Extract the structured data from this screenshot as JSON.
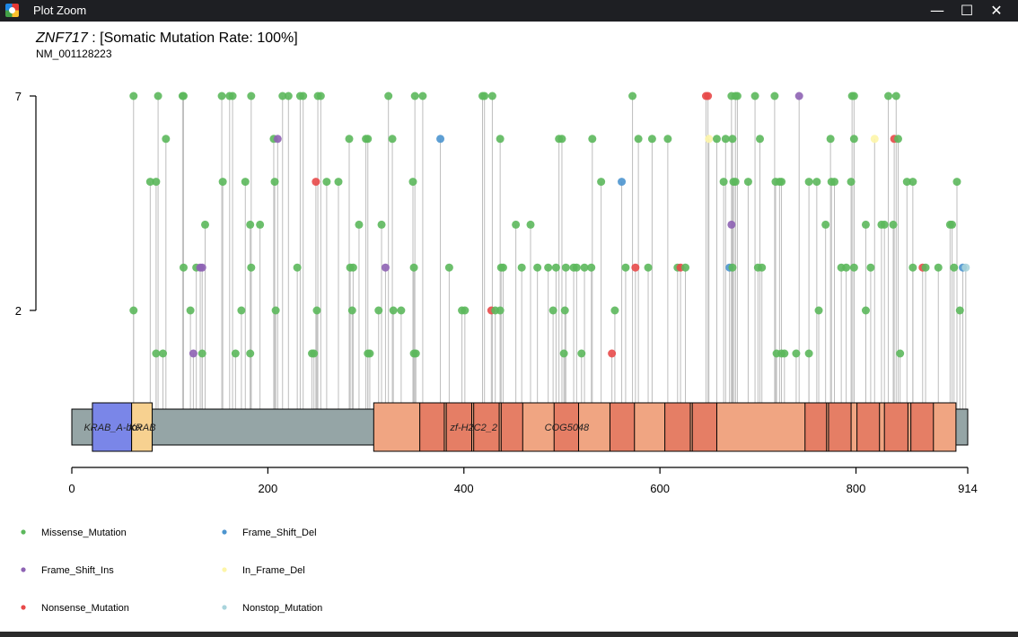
{
  "window": {
    "title": "Plot Zoom",
    "minimize_glyph": "—",
    "maximize_glyph": "☐",
    "close_glyph": "✕"
  },
  "chart_data": {
    "type": "lollipop",
    "title": {
      "gene": "ZNF717",
      "rest": " : [Somatic Mutation Rate: 100%]"
    },
    "subtitle": "NM_001128223",
    "x_ticks": [
      0,
      200,
      400,
      600,
      800,
      914
    ],
    "xlim": [
      0,
      914
    ],
    "y_ticks": [
      7,
      2
    ],
    "protein_length": 914,
    "colors": {
      "Missense_Mutation": "#5cb85c",
      "Frame_Shift_Ins": "#8e63b4",
      "Nonsense_Mutation": "#e84a4a",
      "Frame_Shift_Del": "#4d95cf",
      "In_Frame_Del": "#fdf5a8",
      "Nonstop_Mutation": "#a9d4dc"
    },
    "legend": [
      "Missense_Mutation",
      "Frame_Shift_Del",
      "Frame_Shift_Ins",
      "In_Frame_Del",
      "Nonsense_Mutation",
      "Nonstop_Mutation"
    ],
    "domains": [
      {
        "start": 21,
        "end": 61,
        "color": "#7a86e8",
        "label": "KRAB_A-box"
      },
      {
        "start": 61,
        "end": 82,
        "color": "#f7d190",
        "label": "KRAB"
      },
      {
        "start": 308,
        "end": 902,
        "color": "#f0a582",
        "label": "COG5048"
      },
      {
        "start": 355,
        "end": 905,
        "color": "#e57e65",
        "label": "zf-H2C2_2",
        "repeats": [
          [
            355,
            380
          ],
          [
            382,
            408
          ],
          [
            410,
            436
          ],
          [
            438,
            460
          ],
          [
            492,
            517
          ],
          [
            549,
            574
          ],
          [
            605,
            631
          ],
          [
            633,
            658
          ],
          [
            748,
            770
          ],
          [
            772,
            795
          ],
          [
            801,
            824
          ],
          [
            829,
            853
          ],
          [
            856,
            879
          ]
        ]
      }
    ],
    "mutations": [
      {
        "pos": 63,
        "count": 7,
        "type": "Missense_Mutation"
      },
      {
        "pos": 88,
        "count": 7,
        "type": "Missense_Mutation"
      },
      {
        "pos": 113,
        "count": 7,
        "type": "Missense_Mutation"
      },
      {
        "pos": 114,
        "count": 7,
        "type": "Missense_Mutation"
      },
      {
        "pos": 153,
        "count": 7,
        "type": "Missense_Mutation"
      },
      {
        "pos": 161,
        "count": 7,
        "type": "Missense_Mutation"
      },
      {
        "pos": 164,
        "count": 7,
        "type": "Missense_Mutation"
      },
      {
        "pos": 183,
        "count": 7,
        "type": "Missense_Mutation"
      },
      {
        "pos": 215,
        "count": 7,
        "type": "Missense_Mutation"
      },
      {
        "pos": 221,
        "count": 7,
        "type": "Missense_Mutation"
      },
      {
        "pos": 233,
        "count": 7,
        "type": "Missense_Mutation"
      },
      {
        "pos": 236,
        "count": 7,
        "type": "Missense_Mutation"
      },
      {
        "pos": 251,
        "count": 7,
        "type": "Missense_Mutation"
      },
      {
        "pos": 254,
        "count": 7,
        "type": "Missense_Mutation"
      },
      {
        "pos": 323,
        "count": 7,
        "type": "Missense_Mutation"
      },
      {
        "pos": 350,
        "count": 7,
        "type": "Missense_Mutation"
      },
      {
        "pos": 358,
        "count": 7,
        "type": "Missense_Mutation"
      },
      {
        "pos": 419,
        "count": 7,
        "type": "Missense_Mutation"
      },
      {
        "pos": 421,
        "count": 7,
        "type": "Missense_Mutation"
      },
      {
        "pos": 429,
        "count": 7,
        "type": "Missense_Mutation"
      },
      {
        "pos": 572,
        "count": 7,
        "type": "Missense_Mutation"
      },
      {
        "pos": 647,
        "count": 7,
        "type": "Nonsense_Mutation"
      },
      {
        "pos": 649,
        "count": 7,
        "type": "Nonsense_Mutation"
      },
      {
        "pos": 673,
        "count": 7,
        "type": "Missense_Mutation"
      },
      {
        "pos": 677,
        "count": 7,
        "type": "Missense_Mutation"
      },
      {
        "pos": 679,
        "count": 7,
        "type": "Missense_Mutation"
      },
      {
        "pos": 697,
        "count": 7,
        "type": "Missense_Mutation"
      },
      {
        "pos": 717,
        "count": 7,
        "type": "Missense_Mutation"
      },
      {
        "pos": 742,
        "count": 7,
        "type": "Frame_Shift_Ins"
      },
      {
        "pos": 796,
        "count": 7,
        "type": "Missense_Mutation"
      },
      {
        "pos": 798,
        "count": 7,
        "type": "Missense_Mutation"
      },
      {
        "pos": 833,
        "count": 7,
        "type": "Missense_Mutation"
      },
      {
        "pos": 841,
        "count": 7,
        "type": "Missense_Mutation"
      },
      {
        "pos": 96,
        "count": 6,
        "type": "Missense_Mutation"
      },
      {
        "pos": 206,
        "count": 6,
        "type": "Missense_Mutation"
      },
      {
        "pos": 210,
        "count": 6,
        "type": "Frame_Shift_Ins"
      },
      {
        "pos": 283,
        "count": 6,
        "type": "Missense_Mutation"
      },
      {
        "pos": 300,
        "count": 6,
        "type": "Missense_Mutation"
      },
      {
        "pos": 302,
        "count": 6,
        "type": "Missense_Mutation"
      },
      {
        "pos": 327,
        "count": 6,
        "type": "Missense_Mutation"
      },
      {
        "pos": 376,
        "count": 6,
        "type": "Frame_Shift_Del"
      },
      {
        "pos": 437,
        "count": 6,
        "type": "Missense_Mutation"
      },
      {
        "pos": 497,
        "count": 6,
        "type": "Missense_Mutation"
      },
      {
        "pos": 500,
        "count": 6,
        "type": "Missense_Mutation"
      },
      {
        "pos": 531,
        "count": 6,
        "type": "Missense_Mutation"
      },
      {
        "pos": 578,
        "count": 6,
        "type": "Missense_Mutation"
      },
      {
        "pos": 592,
        "count": 6,
        "type": "Missense_Mutation"
      },
      {
        "pos": 608,
        "count": 6,
        "type": "Missense_Mutation"
      },
      {
        "pos": 650,
        "count": 6,
        "type": "In_Frame_Del"
      },
      {
        "pos": 658,
        "count": 6,
        "type": "Missense_Mutation"
      },
      {
        "pos": 667,
        "count": 6,
        "type": "Missense_Mutation"
      },
      {
        "pos": 674,
        "count": 6,
        "type": "Missense_Mutation"
      },
      {
        "pos": 702,
        "count": 6,
        "type": "Missense_Mutation"
      },
      {
        "pos": 774,
        "count": 6,
        "type": "Missense_Mutation"
      },
      {
        "pos": 798,
        "count": 6,
        "type": "Missense_Mutation"
      },
      {
        "pos": 819,
        "count": 6,
        "type": "In_Frame_Del"
      },
      {
        "pos": 839,
        "count": 6,
        "type": "Nonsense_Mutation"
      },
      {
        "pos": 843,
        "count": 6,
        "type": "Missense_Mutation"
      },
      {
        "pos": 80,
        "count": 5,
        "type": "Missense_Mutation"
      },
      {
        "pos": 86,
        "count": 5,
        "type": "Missense_Mutation"
      },
      {
        "pos": 154,
        "count": 5,
        "type": "Missense_Mutation"
      },
      {
        "pos": 177,
        "count": 5,
        "type": "Missense_Mutation"
      },
      {
        "pos": 207,
        "count": 5,
        "type": "Missense_Mutation"
      },
      {
        "pos": 249,
        "count": 5,
        "type": "Nonsense_Mutation"
      },
      {
        "pos": 260,
        "count": 5,
        "type": "Missense_Mutation"
      },
      {
        "pos": 272,
        "count": 5,
        "type": "Missense_Mutation"
      },
      {
        "pos": 348,
        "count": 5,
        "type": "Missense_Mutation"
      },
      {
        "pos": 540,
        "count": 5,
        "type": "Missense_Mutation"
      },
      {
        "pos": 561,
        "count": 5,
        "type": "Frame_Shift_Del"
      },
      {
        "pos": 665,
        "count": 5,
        "type": "Missense_Mutation"
      },
      {
        "pos": 675,
        "count": 5,
        "type": "Missense_Mutation"
      },
      {
        "pos": 677,
        "count": 5,
        "type": "Missense_Mutation"
      },
      {
        "pos": 690,
        "count": 5,
        "type": "Missense_Mutation"
      },
      {
        "pos": 718,
        "count": 5,
        "type": "Missense_Mutation"
      },
      {
        "pos": 722,
        "count": 5,
        "type": "Missense_Mutation"
      },
      {
        "pos": 724,
        "count": 5,
        "type": "Missense_Mutation"
      },
      {
        "pos": 752,
        "count": 5,
        "type": "Missense_Mutation"
      },
      {
        "pos": 760,
        "count": 5,
        "type": "Missense_Mutation"
      },
      {
        "pos": 775,
        "count": 5,
        "type": "Missense_Mutation"
      },
      {
        "pos": 778,
        "count": 5,
        "type": "Missense_Mutation"
      },
      {
        "pos": 795,
        "count": 5,
        "type": "Missense_Mutation"
      },
      {
        "pos": 852,
        "count": 5,
        "type": "Missense_Mutation"
      },
      {
        "pos": 858,
        "count": 5,
        "type": "Missense_Mutation"
      },
      {
        "pos": 903,
        "count": 5,
        "type": "Missense_Mutation"
      },
      {
        "pos": 136,
        "count": 4,
        "type": "Missense_Mutation"
      },
      {
        "pos": 182,
        "count": 4,
        "type": "Missense_Mutation"
      },
      {
        "pos": 192,
        "count": 4,
        "type": "Missense_Mutation"
      },
      {
        "pos": 293,
        "count": 4,
        "type": "Missense_Mutation"
      },
      {
        "pos": 316,
        "count": 4,
        "type": "Missense_Mutation"
      },
      {
        "pos": 453,
        "count": 4,
        "type": "Missense_Mutation"
      },
      {
        "pos": 468,
        "count": 4,
        "type": "Missense_Mutation"
      },
      {
        "pos": 673,
        "count": 4,
        "type": "Frame_Shift_Ins"
      },
      {
        "pos": 769,
        "count": 4,
        "type": "Missense_Mutation"
      },
      {
        "pos": 810,
        "count": 4,
        "type": "Missense_Mutation"
      },
      {
        "pos": 826,
        "count": 4,
        "type": "Missense_Mutation"
      },
      {
        "pos": 829,
        "count": 4,
        "type": "Missense_Mutation"
      },
      {
        "pos": 838,
        "count": 4,
        "type": "Missense_Mutation"
      },
      {
        "pos": 896,
        "count": 4,
        "type": "Missense_Mutation"
      },
      {
        "pos": 898,
        "count": 4,
        "type": "Missense_Mutation"
      },
      {
        "pos": 114,
        "count": 3,
        "type": "Missense_Mutation"
      },
      {
        "pos": 127,
        "count": 3,
        "type": "Missense_Mutation"
      },
      {
        "pos": 131,
        "count": 3,
        "type": "Frame_Shift_Ins"
      },
      {
        "pos": 133,
        "count": 3,
        "type": "Frame_Shift_Ins"
      },
      {
        "pos": 183,
        "count": 3,
        "type": "Missense_Mutation"
      },
      {
        "pos": 230,
        "count": 3,
        "type": "Missense_Mutation"
      },
      {
        "pos": 284,
        "count": 3,
        "type": "Missense_Mutation"
      },
      {
        "pos": 287,
        "count": 3,
        "type": "Missense_Mutation"
      },
      {
        "pos": 320,
        "count": 3,
        "type": "Frame_Shift_Ins"
      },
      {
        "pos": 349,
        "count": 3,
        "type": "Missense_Mutation"
      },
      {
        "pos": 385,
        "count": 3,
        "type": "Missense_Mutation"
      },
      {
        "pos": 438,
        "count": 3,
        "type": "Missense_Mutation"
      },
      {
        "pos": 440,
        "count": 3,
        "type": "Missense_Mutation"
      },
      {
        "pos": 459,
        "count": 3,
        "type": "Missense_Mutation"
      },
      {
        "pos": 475,
        "count": 3,
        "type": "Missense_Mutation"
      },
      {
        "pos": 486,
        "count": 3,
        "type": "Missense_Mutation"
      },
      {
        "pos": 494,
        "count": 3,
        "type": "Missense_Mutation"
      },
      {
        "pos": 504,
        "count": 3,
        "type": "Missense_Mutation"
      },
      {
        "pos": 512,
        "count": 3,
        "type": "Missense_Mutation"
      },
      {
        "pos": 515,
        "count": 3,
        "type": "Missense_Mutation"
      },
      {
        "pos": 523,
        "count": 3,
        "type": "Missense_Mutation"
      },
      {
        "pos": 530,
        "count": 3,
        "type": "Missense_Mutation"
      },
      {
        "pos": 565,
        "count": 3,
        "type": "Missense_Mutation"
      },
      {
        "pos": 575,
        "count": 3,
        "type": "Nonsense_Mutation"
      },
      {
        "pos": 588,
        "count": 3,
        "type": "Missense_Mutation"
      },
      {
        "pos": 618,
        "count": 3,
        "type": "Missense_Mutation"
      },
      {
        "pos": 621,
        "count": 3,
        "type": "Nonsense_Mutation"
      },
      {
        "pos": 626,
        "count": 3,
        "type": "Missense_Mutation"
      },
      {
        "pos": 671,
        "count": 3,
        "type": "Frame_Shift_Del"
      },
      {
        "pos": 674,
        "count": 3,
        "type": "Missense_Mutation"
      },
      {
        "pos": 700,
        "count": 3,
        "type": "Missense_Mutation"
      },
      {
        "pos": 704,
        "count": 3,
        "type": "Missense_Mutation"
      },
      {
        "pos": 785,
        "count": 3,
        "type": "Missense_Mutation"
      },
      {
        "pos": 790,
        "count": 3,
        "type": "Missense_Mutation"
      },
      {
        "pos": 798,
        "count": 3,
        "type": "Missense_Mutation"
      },
      {
        "pos": 815,
        "count": 3,
        "type": "Missense_Mutation"
      },
      {
        "pos": 858,
        "count": 3,
        "type": "Missense_Mutation"
      },
      {
        "pos": 868,
        "count": 3,
        "type": "Nonsense_Mutation"
      },
      {
        "pos": 871,
        "count": 3,
        "type": "Missense_Mutation"
      },
      {
        "pos": 884,
        "count": 3,
        "type": "Missense_Mutation"
      },
      {
        "pos": 900,
        "count": 3,
        "type": "Missense_Mutation"
      },
      {
        "pos": 909,
        "count": 3,
        "type": "Frame_Shift_Del"
      },
      {
        "pos": 912,
        "count": 3,
        "type": "Nonstop_Mutation"
      },
      {
        "pos": 63,
        "count": 2,
        "type": "Missense_Mutation"
      },
      {
        "pos": 121,
        "count": 2,
        "type": "Missense_Mutation"
      },
      {
        "pos": 173,
        "count": 2,
        "type": "Missense_Mutation"
      },
      {
        "pos": 208,
        "count": 2,
        "type": "Missense_Mutation"
      },
      {
        "pos": 250,
        "count": 2,
        "type": "Missense_Mutation"
      },
      {
        "pos": 286,
        "count": 2,
        "type": "Missense_Mutation"
      },
      {
        "pos": 313,
        "count": 2,
        "type": "Missense_Mutation"
      },
      {
        "pos": 328,
        "count": 2,
        "type": "Missense_Mutation"
      },
      {
        "pos": 336,
        "count": 2,
        "type": "Missense_Mutation"
      },
      {
        "pos": 398,
        "count": 2,
        "type": "Missense_Mutation"
      },
      {
        "pos": 401,
        "count": 2,
        "type": "Missense_Mutation"
      },
      {
        "pos": 428,
        "count": 2,
        "type": "Nonsense_Mutation"
      },
      {
        "pos": 432,
        "count": 2,
        "type": "Missense_Mutation"
      },
      {
        "pos": 437,
        "count": 2,
        "type": "Missense_Mutation"
      },
      {
        "pos": 491,
        "count": 2,
        "type": "Missense_Mutation"
      },
      {
        "pos": 503,
        "count": 2,
        "type": "Missense_Mutation"
      },
      {
        "pos": 554,
        "count": 2,
        "type": "Missense_Mutation"
      },
      {
        "pos": 762,
        "count": 2,
        "type": "Missense_Mutation"
      },
      {
        "pos": 810,
        "count": 2,
        "type": "Missense_Mutation"
      },
      {
        "pos": 906,
        "count": 2,
        "type": "Missense_Mutation"
      },
      {
        "pos": 86,
        "count": 1,
        "type": "Missense_Mutation"
      },
      {
        "pos": 93,
        "count": 1,
        "type": "Missense_Mutation"
      },
      {
        "pos": 124,
        "count": 1,
        "type": "Frame_Shift_Ins"
      },
      {
        "pos": 133,
        "count": 1,
        "type": "Missense_Mutation"
      },
      {
        "pos": 167,
        "count": 1,
        "type": "Missense_Mutation"
      },
      {
        "pos": 182,
        "count": 1,
        "type": "Missense_Mutation"
      },
      {
        "pos": 245,
        "count": 1,
        "type": "Missense_Mutation"
      },
      {
        "pos": 247,
        "count": 1,
        "type": "Missense_Mutation"
      },
      {
        "pos": 302,
        "count": 1,
        "type": "Missense_Mutation"
      },
      {
        "pos": 304,
        "count": 1,
        "type": "Missense_Mutation"
      },
      {
        "pos": 349,
        "count": 1,
        "type": "Missense_Mutation"
      },
      {
        "pos": 351,
        "count": 1,
        "type": "Missense_Mutation"
      },
      {
        "pos": 502,
        "count": 1,
        "type": "Missense_Mutation"
      },
      {
        "pos": 520,
        "count": 1,
        "type": "Missense_Mutation"
      },
      {
        "pos": 551,
        "count": 1,
        "type": "Nonsense_Mutation"
      },
      {
        "pos": 719,
        "count": 1,
        "type": "Missense_Mutation"
      },
      {
        "pos": 724,
        "count": 1,
        "type": "Missense_Mutation"
      },
      {
        "pos": 727,
        "count": 1,
        "type": "Missense_Mutation"
      },
      {
        "pos": 739,
        "count": 1,
        "type": "Missense_Mutation"
      },
      {
        "pos": 752,
        "count": 1,
        "type": "Missense_Mutation"
      },
      {
        "pos": 845,
        "count": 1,
        "type": "Missense_Mutation"
      }
    ]
  }
}
